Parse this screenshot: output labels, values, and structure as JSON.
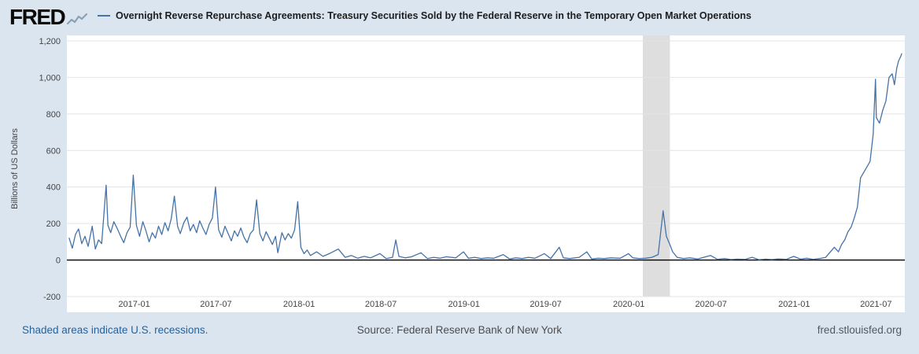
{
  "header": {
    "logo_text": "FRED",
    "title": "Overnight Reverse Repurchase Agreements: Treasury Securities Sold by the Federal Reserve in the Temporary Open Market Operations"
  },
  "footer": {
    "recession_note": "Shaded areas indicate U.S. recessions.",
    "source": "Source: Federal Reserve Bank of New York",
    "site": "fred.stlouisfed.org"
  },
  "colors": {
    "background": "#dbe5f0",
    "plot_bg": "#ffffff",
    "line": "#4572a7",
    "recession": "#dedede",
    "grid": "#e4e4e4",
    "zero_line": "#000000",
    "tick_text": "#444444",
    "link": "#1e63a4"
  },
  "chart_data": {
    "type": "line",
    "title": "Overnight Reverse Repurchase Agreements: Treasury Securities Sold by the Federal Reserve in the Temporary Open Market Operations",
    "xlabel": "",
    "ylabel": "Billions of US Dollars",
    "ylim": [
      -200,
      1200
    ],
    "yticks": [
      -200,
      0,
      200,
      400,
      600,
      800,
      1000,
      1200
    ],
    "xlim": [
      "2016-08-05",
      "2021-09-03"
    ],
    "xticks": [
      {
        "date": "2017-01-01",
        "label": "2017-01"
      },
      {
        "date": "2017-07-01",
        "label": "2017-07"
      },
      {
        "date": "2018-01-01",
        "label": "2018-01"
      },
      {
        "date": "2018-07-01",
        "label": "2018-07"
      },
      {
        "date": "2019-01-01",
        "label": "2019-01"
      },
      {
        "date": "2019-07-01",
        "label": "2019-07"
      },
      {
        "date": "2020-01-01",
        "label": "2020-01"
      },
      {
        "date": "2020-07-01",
        "label": "2020-07"
      },
      {
        "date": "2021-01-01",
        "label": "2021-01"
      },
      {
        "date": "2021-07-01",
        "label": "2021-07"
      }
    ],
    "recessions": [
      {
        "start": "2020-02-01",
        "end": "2020-04-01"
      }
    ],
    "grid": true,
    "legend_position": "top",
    "series": [
      {
        "name": "Overnight Reverse Repurchase Agreements: Treasury Securities Sold by the Federal Reserve in the Temporary Open Market Operations",
        "units": "Billions of US Dollars",
        "points": [
          [
            "2016-08-10",
            120
          ],
          [
            "2016-08-17",
            65
          ],
          [
            "2016-08-24",
            140
          ],
          [
            "2016-08-31",
            170
          ],
          [
            "2016-09-07",
            90
          ],
          [
            "2016-09-14",
            130
          ],
          [
            "2016-09-21",
            75
          ],
          [
            "2016-09-30",
            185
          ],
          [
            "2016-10-07",
            60
          ],
          [
            "2016-10-14",
            110
          ],
          [
            "2016-10-21",
            90
          ],
          [
            "2016-10-31",
            410
          ],
          [
            "2016-11-04",
            190
          ],
          [
            "2016-11-10",
            150
          ],
          [
            "2016-11-17",
            210
          ],
          [
            "2016-11-25",
            170
          ],
          [
            "2016-12-02",
            130
          ],
          [
            "2016-12-09",
            95
          ],
          [
            "2016-12-16",
            150
          ],
          [
            "2016-12-23",
            180
          ],
          [
            "2016-12-30",
            465
          ],
          [
            "2017-01-06",
            190
          ],
          [
            "2017-01-13",
            130
          ],
          [
            "2017-01-20",
            210
          ],
          [
            "2017-01-27",
            160
          ],
          [
            "2017-02-03",
            100
          ],
          [
            "2017-02-10",
            150
          ],
          [
            "2017-02-17",
            120
          ],
          [
            "2017-02-24",
            185
          ],
          [
            "2017-03-03",
            140
          ],
          [
            "2017-03-10",
            205
          ],
          [
            "2017-03-17",
            160
          ],
          [
            "2017-03-24",
            225
          ],
          [
            "2017-03-31",
            350
          ],
          [
            "2017-04-07",
            185
          ],
          [
            "2017-04-13",
            145
          ],
          [
            "2017-04-21",
            205
          ],
          [
            "2017-04-28",
            235
          ],
          [
            "2017-05-05",
            160
          ],
          [
            "2017-05-12",
            195
          ],
          [
            "2017-05-19",
            150
          ],
          [
            "2017-05-26",
            215
          ],
          [
            "2017-06-02",
            175
          ],
          [
            "2017-06-09",
            140
          ],
          [
            "2017-06-16",
            195
          ],
          [
            "2017-06-23",
            230
          ],
          [
            "2017-06-30",
            400
          ],
          [
            "2017-07-07",
            165
          ],
          [
            "2017-07-14",
            125
          ],
          [
            "2017-07-21",
            185
          ],
          [
            "2017-07-28",
            145
          ],
          [
            "2017-08-04",
            105
          ],
          [
            "2017-08-11",
            160
          ],
          [
            "2017-08-18",
            130
          ],
          [
            "2017-08-25",
            175
          ],
          [
            "2017-09-01",
            125
          ],
          [
            "2017-09-08",
            95
          ],
          [
            "2017-09-15",
            145
          ],
          [
            "2017-09-22",
            165
          ],
          [
            "2017-09-29",
            330
          ],
          [
            "2017-10-06",
            145
          ],
          [
            "2017-10-13",
            105
          ],
          [
            "2017-10-20",
            155
          ],
          [
            "2017-10-27",
            120
          ],
          [
            "2017-11-03",
            85
          ],
          [
            "2017-11-10",
            130
          ],
          [
            "2017-11-15",
            40
          ],
          [
            "2017-11-24",
            150
          ],
          [
            "2017-12-01",
            110
          ],
          [
            "2017-12-08",
            145
          ],
          [
            "2017-12-15",
            120
          ],
          [
            "2017-12-22",
            165
          ],
          [
            "2017-12-29",
            320
          ],
          [
            "2018-01-05",
            70
          ],
          [
            "2018-01-12",
            35
          ],
          [
            "2018-01-19",
            55
          ],
          [
            "2018-01-26",
            25
          ],
          [
            "2018-02-09",
            45
          ],
          [
            "2018-02-23",
            20
          ],
          [
            "2018-03-09",
            35
          ],
          [
            "2018-03-29",
            60
          ],
          [
            "2018-04-13",
            15
          ],
          [
            "2018-04-27",
            25
          ],
          [
            "2018-05-11",
            10
          ],
          [
            "2018-05-25",
            20
          ],
          [
            "2018-06-08",
            12
          ],
          [
            "2018-06-29",
            35
          ],
          [
            "2018-07-13",
            8
          ],
          [
            "2018-07-27",
            15
          ],
          [
            "2018-08-03",
            110
          ],
          [
            "2018-08-10",
            20
          ],
          [
            "2018-08-24",
            12
          ],
          [
            "2018-09-07",
            18
          ],
          [
            "2018-09-28",
            40
          ],
          [
            "2018-10-12",
            8
          ],
          [
            "2018-10-26",
            15
          ],
          [
            "2018-11-09",
            10
          ],
          [
            "2018-11-23",
            18
          ],
          [
            "2018-12-14",
            12
          ],
          [
            "2018-12-31",
            45
          ],
          [
            "2019-01-11",
            10
          ],
          [
            "2019-01-25",
            15
          ],
          [
            "2019-02-08",
            8
          ],
          [
            "2019-02-22",
            12
          ],
          [
            "2019-03-08",
            10
          ],
          [
            "2019-03-29",
            30
          ],
          [
            "2019-04-12",
            6
          ],
          [
            "2019-04-26",
            12
          ],
          [
            "2019-05-10",
            8
          ],
          [
            "2019-05-24",
            15
          ],
          [
            "2019-06-07",
            10
          ],
          [
            "2019-06-28",
            35
          ],
          [
            "2019-07-12",
            8
          ],
          [
            "2019-07-31",
            70
          ],
          [
            "2019-08-09",
            12
          ],
          [
            "2019-08-23",
            8
          ],
          [
            "2019-09-13",
            15
          ],
          [
            "2019-09-30",
            45
          ],
          [
            "2019-10-11",
            6
          ],
          [
            "2019-10-25",
            10
          ],
          [
            "2019-11-08",
            8
          ],
          [
            "2019-11-22",
            12
          ],
          [
            "2019-12-13",
            10
          ],
          [
            "2019-12-31",
            35
          ],
          [
            "2020-01-10",
            12
          ],
          [
            "2020-01-24",
            8
          ],
          [
            "2020-02-07",
            10
          ],
          [
            "2020-02-21",
            15
          ],
          [
            "2020-03-06",
            30
          ],
          [
            "2020-03-17",
            270
          ],
          [
            "2020-03-24",
            130
          ],
          [
            "2020-03-31",
            90
          ],
          [
            "2020-04-07",
            45
          ],
          [
            "2020-04-17",
            15
          ],
          [
            "2020-05-01",
            8
          ],
          [
            "2020-05-15",
            12
          ],
          [
            "2020-06-01",
            6
          ],
          [
            "2020-06-30",
            25
          ],
          [
            "2020-07-15",
            4
          ],
          [
            "2020-07-31",
            8
          ],
          [
            "2020-08-14",
            3
          ],
          [
            "2020-08-28",
            5
          ],
          [
            "2020-09-15",
            4
          ],
          [
            "2020-09-30",
            15
          ],
          [
            "2020-10-15",
            2
          ],
          [
            "2020-10-30",
            5
          ],
          [
            "2020-11-13",
            3
          ],
          [
            "2020-11-27",
            6
          ],
          [
            "2020-12-15",
            4
          ],
          [
            "2020-12-31",
            20
          ],
          [
            "2021-01-15",
            5
          ],
          [
            "2021-01-29",
            10
          ],
          [
            "2021-02-12",
            4
          ],
          [
            "2021-02-26",
            8
          ],
          [
            "2021-03-12",
            15
          ],
          [
            "2021-03-31",
            70
          ],
          [
            "2021-04-09",
            45
          ],
          [
            "2021-04-16",
            85
          ],
          [
            "2021-04-23",
            110
          ],
          [
            "2021-04-30",
            155
          ],
          [
            "2021-05-07",
            180
          ],
          [
            "2021-05-14",
            230
          ],
          [
            "2021-05-21",
            290
          ],
          [
            "2021-05-28",
            450
          ],
          [
            "2021-06-04",
            480
          ],
          [
            "2021-06-11",
            510
          ],
          [
            "2021-06-18",
            540
          ],
          [
            "2021-06-25",
            690
          ],
          [
            "2021-06-30",
            990
          ],
          [
            "2021-07-02",
            780
          ],
          [
            "2021-07-09",
            750
          ],
          [
            "2021-07-16",
            820
          ],
          [
            "2021-07-23",
            870
          ],
          [
            "2021-07-30",
            1000
          ],
          [
            "2021-08-06",
            1020
          ],
          [
            "2021-08-11",
            960
          ],
          [
            "2021-08-16",
            1050
          ],
          [
            "2021-08-20",
            1090
          ],
          [
            "2021-08-25",
            1115
          ],
          [
            "2021-08-27",
            1130
          ]
        ]
      }
    ]
  }
}
